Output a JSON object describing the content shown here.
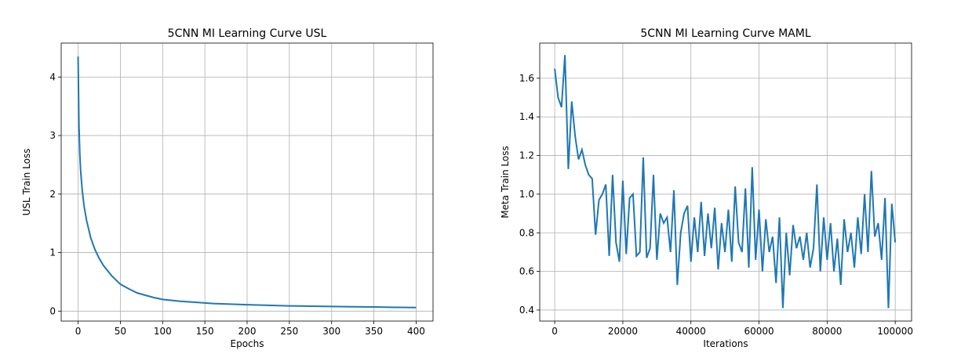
{
  "chart_data": [
    {
      "type": "line",
      "title": "5CNN MI Learning Curve USL",
      "xlabel": "Epochs",
      "ylabel": "USL Train Loss",
      "x": [
        0,
        1,
        2,
        3,
        5,
        7,
        10,
        15,
        20,
        25,
        30,
        40,
        50,
        60,
        70,
        80,
        90,
        100,
        120,
        140,
        160,
        180,
        200,
        225,
        250,
        275,
        300,
        325,
        350,
        375,
        400
      ],
      "series": [
        {
          "color": "#1f77b4",
          "values": [
            4.35,
            3.2,
            2.7,
            2.4,
            2.05,
            1.8,
            1.55,
            1.25,
            1.05,
            0.9,
            0.78,
            0.6,
            0.46,
            0.38,
            0.31,
            0.27,
            0.23,
            0.2,
            0.17,
            0.15,
            0.13,
            0.12,
            0.11,
            0.1,
            0.09,
            0.085,
            0.08,
            0.075,
            0.07,
            0.065,
            0.06
          ]
        }
      ],
      "xlim": [
        -20,
        420
      ],
      "ylim": [
        -0.17,
        4.58
      ],
      "xticks": [
        0,
        50,
        100,
        150,
        200,
        250,
        300,
        350,
        400
      ],
      "yticks": [
        0,
        1,
        2,
        3,
        4
      ],
      "grid": true
    },
    {
      "type": "line",
      "title": "5CNN MI Learning Curve MAML",
      "xlabel": "Iterations",
      "ylabel": "Meta Train Loss",
      "x": [
        0,
        1000,
        2000,
        3000,
        4000,
        5000,
        6000,
        7000,
        8000,
        9000,
        10000,
        11000,
        12000,
        13000,
        14000,
        15000,
        16000,
        17000,
        18000,
        19000,
        20000,
        21000,
        22000,
        23000,
        24000,
        25000,
        26000,
        27000,
        28000,
        29000,
        30000,
        31000,
        32000,
        33000,
        34000,
        35000,
        36000,
        37000,
        38000,
        39000,
        40000,
        41000,
        42000,
        43000,
        44000,
        45000,
        46000,
        47000,
        48000,
        49000,
        50000,
        51000,
        52000,
        53000,
        54000,
        55000,
        56000,
        57000,
        58000,
        59000,
        60000,
        61000,
        62000,
        63000,
        64000,
        65000,
        66000,
        67000,
        68000,
        69000,
        70000,
        71000,
        72000,
        73000,
        74000,
        75000,
        76000,
        77000,
        78000,
        79000,
        80000,
        81000,
        82000,
        83000,
        84000,
        85000,
        86000,
        87000,
        88000,
        89000,
        90000,
        91000,
        92000,
        93000,
        94000,
        95000,
        96000,
        97000,
        98000,
        99000,
        100000
      ],
      "series": [
        {
          "color": "#1f77b4",
          "values": [
            1.65,
            1.5,
            1.45,
            1.72,
            1.13,
            1.48,
            1.3,
            1.18,
            1.23,
            1.15,
            1.1,
            1.08,
            0.79,
            0.97,
            1.0,
            1.05,
            0.68,
            1.1,
            0.75,
            0.65,
            1.07,
            0.69,
            0.98,
            1.0,
            0.68,
            0.7,
            1.19,
            0.67,
            0.72,
            1.1,
            0.66,
            0.9,
            0.85,
            0.88,
            0.7,
            1.02,
            0.53,
            0.8,
            0.9,
            0.94,
            0.65,
            0.88,
            0.7,
            0.96,
            0.68,
            0.9,
            0.72,
            0.93,
            0.61,
            0.85,
            0.7,
            0.92,
            0.65,
            1.04,
            0.75,
            0.7,
            1.03,
            0.62,
            1.14,
            0.66,
            0.92,
            0.6,
            0.87,
            0.7,
            0.78,
            0.54,
            0.88,
            0.41,
            0.8,
            0.58,
            0.84,
            0.72,
            0.78,
            0.66,
            0.8,
            0.62,
            0.72,
            1.05,
            0.6,
            0.88,
            0.66,
            0.85,
            0.6,
            0.77,
            0.53,
            0.87,
            0.7,
            0.8,
            0.62,
            0.88,
            0.69,
            1.0,
            0.7,
            1.12,
            0.78,
            0.85,
            0.66,
            0.98,
            0.41,
            0.95,
            0.75
          ]
        }
      ],
      "xlim": [
        -4400,
        104800
      ],
      "ylim": [
        0.343,
        1.782
      ],
      "xticks": [
        0,
        20000,
        40000,
        60000,
        80000,
        100000
      ],
      "yticks": [
        0.4,
        0.6,
        0.8,
        {
          "value": 1,
          "label": "1.0"
        },
        1.2,
        1.4,
        1.6
      ],
      "grid": true
    }
  ]
}
